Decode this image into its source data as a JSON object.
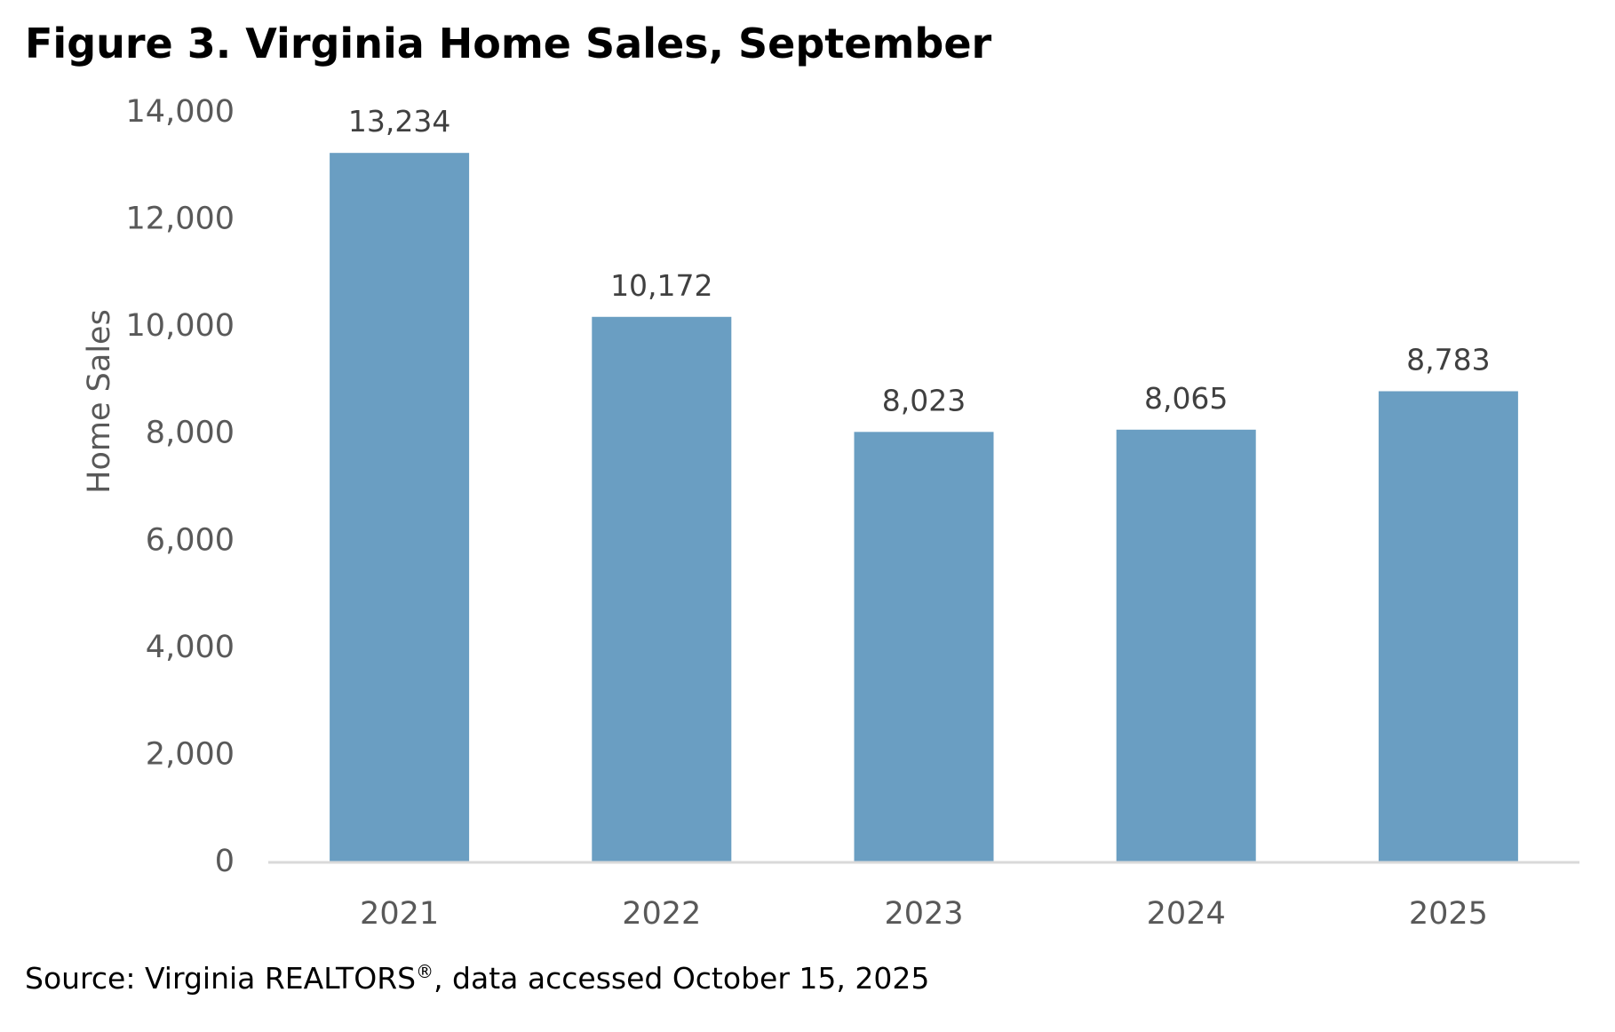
{
  "figure": {
    "title": "Figure 3. Virginia Home Sales, September",
    "source_prefix": "Source: Virginia REALTORS",
    "source_mark": "®",
    "source_suffix": ", data accessed October 15, 2025"
  },
  "chart_data": {
    "type": "bar",
    "title": "Figure 3. Virginia Home Sales, September",
    "xlabel": "",
    "ylabel": "Home Sales",
    "categories": [
      "2021",
      "2022",
      "2023",
      "2024",
      "2025"
    ],
    "values": [
      13234,
      10172,
      8023,
      8065,
      8783
    ],
    "value_labels": [
      "13,234",
      "10,172",
      "8,023",
      "8,065",
      "8,783"
    ],
    "y_ticks": [
      0,
      2000,
      4000,
      6000,
      8000,
      10000,
      12000,
      14000
    ],
    "y_tick_labels": [
      "0",
      "2,000",
      "4,000",
      "6,000",
      "8,000",
      "10,000",
      "12,000",
      "14,000"
    ],
    "ylim": [
      0,
      14000
    ],
    "grid": false,
    "legend": "none",
    "colors": {
      "bar": "#6a9ec2",
      "axis_line": "#d9d9d9",
      "tick_text": "#595959",
      "label_text": "#404040"
    }
  }
}
